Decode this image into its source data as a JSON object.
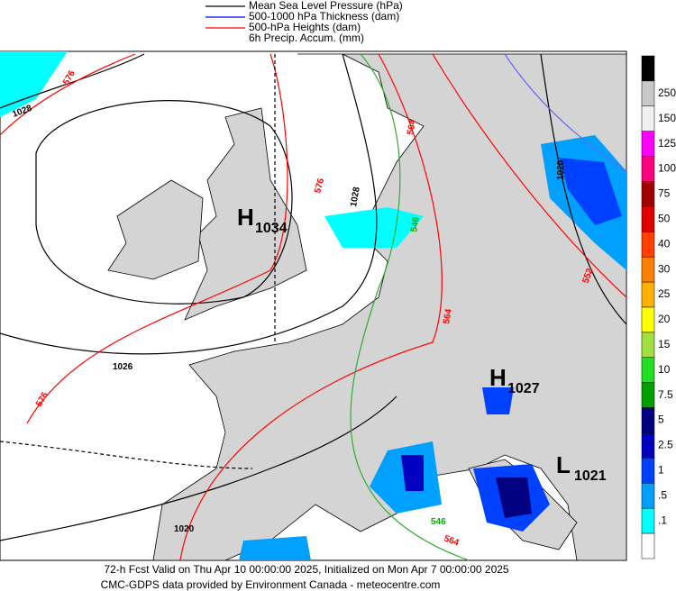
{
  "legend": [
    {
      "label": "Mean Sea Level Pressure (hPa)",
      "color": "#000000"
    },
    {
      "label": "500-1000 hPa Thickness (dam)",
      "color": "#0000ff"
    },
    {
      "label": "500-hPa Heights (dam)",
      "color": "#ff0000"
    },
    {
      "label": "6h Precip. Accum. (mm)",
      "color": null
    }
  ],
  "contour_labels": [
    {
      "text": "1028",
      "color": "#000000"
    },
    {
      "text": "576",
      "color": "#ff0000"
    },
    {
      "text": "576",
      "color": "#ff0000"
    },
    {
      "text": "1028",
      "color": "#000000"
    },
    {
      "text": "564",
      "color": "#ff0000"
    },
    {
      "text": "546",
      "color": "#00aa00"
    },
    {
      "text": "1020",
      "color": "#000000"
    },
    {
      "text": "552",
      "color": "#ff0000"
    },
    {
      "text": "564",
      "color": "#ff0000"
    },
    {
      "text": "1026",
      "color": "#000000"
    },
    {
      "text": "576",
      "color": "#ff0000"
    },
    {
      "text": "1020",
      "color": "#000000"
    },
    {
      "text": "546",
      "color": "#00aa00"
    },
    {
      "text": "564",
      "color": "#ff0000"
    }
  ],
  "centers": [
    {
      "letter": "H",
      "value": "1034"
    },
    {
      "letter": "H",
      "value": "1027"
    },
    {
      "letter": "L",
      "value": "1021"
    }
  ],
  "colorbar": {
    "labels": [
      "250",
      "150",
      "125",
      "100",
      "75",
      "50",
      "40",
      "30",
      "25",
      "20",
      "15",
      "10",
      "7.5",
      "5",
      "2.5",
      "1",
      ".5",
      ".1"
    ],
    "colors": [
      "#000000",
      "#c8c8c8",
      "#f0f0f0",
      "#ff00ff",
      "#ff0080",
      "#a00000",
      "#e00000",
      "#ff4000",
      "#ff8000",
      "#ffb000",
      "#ffff00",
      "#a0e040",
      "#20e020",
      "#00a000",
      "#000080",
      "#0000c0",
      "#0040ff",
      "#00a0ff",
      "#00ffff",
      "#ffffff"
    ]
  },
  "footer": [
    "72-h Fcst Valid on Thu Apr 10 00:00:00 2025, Initialized on Mon Apr  7 00:00:00 2025",
    "CMC-GDPS data provided by Environment Canada - meteocentre.com"
  ]
}
